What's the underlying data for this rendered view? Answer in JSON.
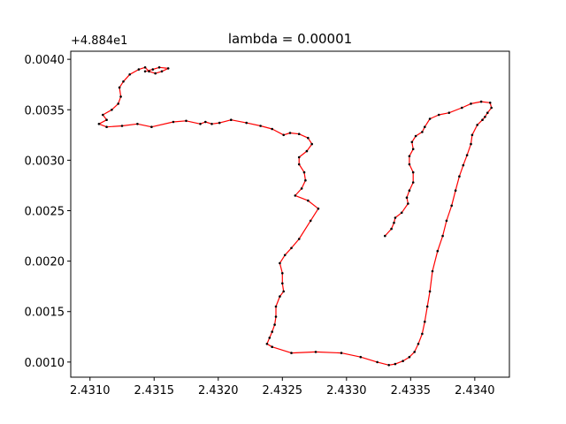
{
  "chart_data": {
    "type": "line",
    "title": "lambda = 0.00001",
    "xlabel": "",
    "ylabel": "",
    "y_offset_text": "+4.884e1",
    "xlim": [
      2.43085,
      2.43427
    ],
    "ylim": [
      0.00085,
      0.00408
    ],
    "x_ticks": [
      2.431,
      2.4315,
      2.432,
      2.4325,
      2.433,
      2.4335,
      2.434
    ],
    "x_tick_labels": [
      "2.4310",
      "2.4315",
      "2.4320",
      "2.4325",
      "2.4330",
      "2.4335",
      "2.4340"
    ],
    "y_ticks": [
      0.001,
      0.0015,
      0.002,
      0.0025,
      0.003,
      0.0035,
      0.004
    ],
    "y_tick_labels": [
      "0.0010",
      "0.0015",
      "0.0020",
      "0.0025",
      "0.0030",
      "0.0035",
      "0.0040"
    ],
    "grid": false,
    "line_color": "#ff0000",
    "marker_color": "#000000",
    "series": [
      {
        "points": [
          [
            2.4333,
            0.00225
          ],
          [
            2.43335,
            0.00232
          ],
          [
            2.43337,
            0.00238
          ],
          [
            2.43338,
            0.00243
          ],
          [
            2.43343,
            0.00248
          ],
          [
            2.43348,
            0.00257
          ],
          [
            2.43347,
            0.00263
          ],
          [
            2.43349,
            0.0027
          ],
          [
            2.43352,
            0.00278
          ],
          [
            2.43352,
            0.00288
          ],
          [
            2.43349,
            0.00296
          ],
          [
            2.43349,
            0.00304
          ],
          [
            2.43352,
            0.00311
          ],
          [
            2.43351,
            0.00318
          ],
          [
            2.43354,
            0.00324
          ],
          [
            2.43359,
            0.00328
          ],
          [
            2.43361,
            0.00333
          ],
          [
            2.43365,
            0.00341
          ],
          [
            2.43372,
            0.00345
          ],
          [
            2.4338,
            0.00347
          ],
          [
            2.4339,
            0.00352
          ],
          [
            2.43397,
            0.00356
          ],
          [
            2.43405,
            0.00358
          ],
          [
            2.43412,
            0.00357
          ],
          [
            2.43413,
            0.00352
          ],
          [
            2.4341,
            0.00347
          ],
          [
            2.43408,
            0.00343
          ],
          [
            2.43406,
            0.0034
          ],
          [
            2.43402,
            0.00335
          ],
          [
            2.43398,
            0.00325
          ],
          [
            2.43397,
            0.00316
          ],
          [
            2.43394,
            0.00305
          ],
          [
            2.43391,
            0.00295
          ],
          [
            2.43388,
            0.00284
          ],
          [
            2.43385,
            0.0027
          ],
          [
            2.43382,
            0.00255
          ],
          [
            2.43378,
            0.0024
          ],
          [
            2.43375,
            0.00225
          ],
          [
            2.43371,
            0.0021
          ],
          [
            2.43367,
            0.0019
          ],
          [
            2.43365,
            0.0017
          ],
          [
            2.43363,
            0.00155
          ],
          [
            2.43361,
            0.0014
          ],
          [
            2.43359,
            0.00128
          ],
          [
            2.43356,
            0.00118
          ],
          [
            2.43353,
            0.0011
          ],
          [
            2.43349,
            0.00105
          ],
          [
            2.43344,
            0.00101
          ],
          [
            2.43338,
            0.00098
          ],
          [
            2.43333,
            0.00097
          ],
          [
            2.43324,
            0.001
          ],
          [
            2.43311,
            0.00105
          ],
          [
            2.43296,
            0.00109
          ],
          [
            2.43276,
            0.0011
          ],
          [
            2.43257,
            0.00109
          ],
          [
            2.43242,
            0.00115
          ],
          [
            2.43238,
            0.00118
          ],
          [
            2.4324,
            0.00124
          ],
          [
            2.43242,
            0.0013
          ],
          [
            2.43244,
            0.00137
          ],
          [
            2.43245,
            0.00145
          ],
          [
            2.43245,
            0.00155
          ],
          [
            2.43248,
            0.00165
          ],
          [
            2.43251,
            0.0017
          ],
          [
            2.4325,
            0.00178
          ],
          [
            2.4325,
            0.00188
          ],
          [
            2.43248,
            0.00198
          ],
          [
            2.43252,
            0.00206
          ],
          [
            2.43257,
            0.00213
          ],
          [
            2.43263,
            0.00222
          ],
          [
            2.43272,
            0.0024
          ],
          [
            2.43278,
            0.00252
          ],
          [
            2.4327,
            0.0026
          ],
          [
            2.4326,
            0.00265
          ],
          [
            2.43265,
            0.00272
          ],
          [
            2.43268,
            0.0028
          ],
          [
            2.43267,
            0.00288
          ],
          [
            2.43263,
            0.00296
          ],
          [
            2.43263,
            0.00303
          ],
          [
            2.43269,
            0.00309
          ],
          [
            2.43273,
            0.00316
          ],
          [
            2.4327,
            0.00322
          ],
          [
            2.43263,
            0.00326
          ],
          [
            2.43256,
            0.00327
          ],
          [
            2.43251,
            0.00325
          ],
          [
            2.43242,
            0.00331
          ],
          [
            2.43233,
            0.00334
          ],
          [
            2.43222,
            0.00337
          ],
          [
            2.4321,
            0.0034
          ],
          [
            2.43201,
            0.00337
          ],
          [
            2.43195,
            0.00336
          ],
          [
            2.4319,
            0.00338
          ],
          [
            2.43186,
            0.00336
          ],
          [
            2.43175,
            0.00339
          ],
          [
            2.43165,
            0.00338
          ],
          [
            2.43148,
            0.00333
          ],
          [
            2.43137,
            0.00336
          ],
          [
            2.43125,
            0.00334
          ],
          [
            2.43113,
            0.00333
          ],
          [
            2.43107,
            0.00336
          ],
          [
            2.43113,
            0.0034
          ],
          [
            2.4311,
            0.00345
          ],
          [
            2.43117,
            0.0035
          ],
          [
            2.43122,
            0.00356
          ],
          [
            2.43124,
            0.00363
          ],
          [
            2.43123,
            0.00372
          ],
          [
            2.43126,
            0.00378
          ],
          [
            2.43131,
            0.00385
          ],
          [
            2.43138,
            0.0039
          ],
          [
            2.43143,
            0.00392
          ],
          [
            2.43146,
            0.00388
          ],
          [
            2.43151,
            0.00386
          ],
          [
            2.43156,
            0.00388
          ],
          [
            2.43161,
            0.00391
          ],
          [
            2.43154,
            0.00392
          ],
          [
            2.43149,
            0.0039
          ],
          [
            2.43143,
            0.00388
          ]
        ]
      }
    ]
  }
}
